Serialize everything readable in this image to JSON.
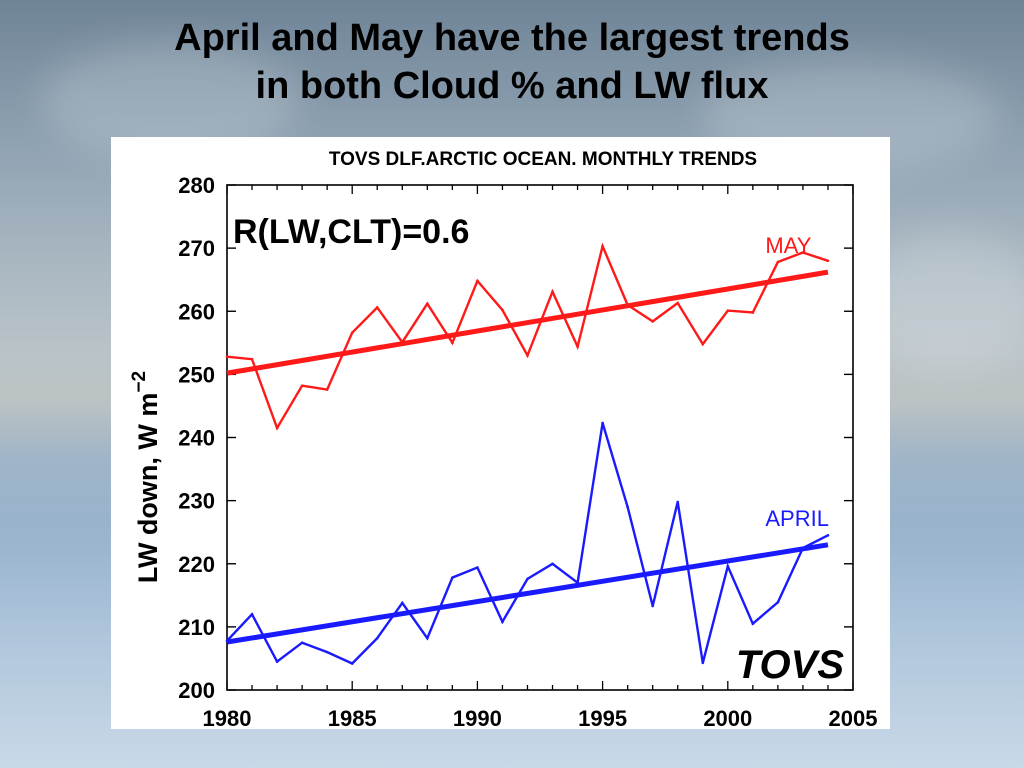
{
  "slide": {
    "title_line1": "April and May have the largest trends",
    "title_line2": "in both Cloud % and LW flux"
  },
  "chart_data": {
    "type": "line",
    "title": "TOVS DLF.ARCTIC OCEAN. MONTHLY TRENDS",
    "xlabel": "",
    "ylabel": "LW down,  W m",
    "ylabel_superscript": "−2",
    "xlim": [
      1980,
      2005
    ],
    "ylim": [
      200,
      280
    ],
    "xticks": [
      1980,
      1985,
      1990,
      1995,
      2000,
      2005
    ],
    "yticks": [
      200,
      210,
      220,
      230,
      240,
      250,
      260,
      270,
      280
    ],
    "annotation": "R(LW,CLT)=0.6",
    "watermark": "TOVS",
    "series": [
      {
        "name": "MAY",
        "color": "#ff1a1a",
        "x": [
          1980,
          1981,
          1982,
          1983,
          1984,
          1985,
          1986,
          1987,
          1988,
          1989,
          1990,
          1991,
          1992,
          1993,
          1994,
          1995,
          1996,
          1997,
          1998,
          1999,
          2000,
          2001,
          2002,
          2003,
          2004
        ],
        "values": [
          252.8,
          252.4,
          241.5,
          248.2,
          247.6,
          256.6,
          260.6,
          255.1,
          261.2,
          255.0,
          264.8,
          260.2,
          253.0,
          263.1,
          254.4,
          270.3,
          261.0,
          258.4,
          261.3,
          254.8,
          260.1,
          259.8,
          267.8,
          269.3,
          268.0
        ],
        "trend": [
          250.2,
          266.2
        ]
      },
      {
        "name": "APRIL",
        "color": "#1a1aff",
        "x": [
          1980,
          1981,
          1982,
          1983,
          1984,
          1985,
          1986,
          1987,
          1988,
          1989,
          1990,
          1991,
          1992,
          1993,
          1994,
          1995,
          1996,
          1997,
          1998,
          1999,
          2000,
          2001,
          2002,
          2003,
          2004
        ],
        "values": [
          207.8,
          212.0,
          204.5,
          207.5,
          206.0,
          204.2,
          208.2,
          213.8,
          208.2,
          217.8,
          219.4,
          210.8,
          217.6,
          220.0,
          217.0,
          242.3,
          229.0,
          213.3,
          229.8,
          204.3,
          219.6,
          210.5,
          213.9,
          222.5,
          224.5
        ],
        "trend": [
          207.6,
          223.0
        ]
      }
    ]
  }
}
